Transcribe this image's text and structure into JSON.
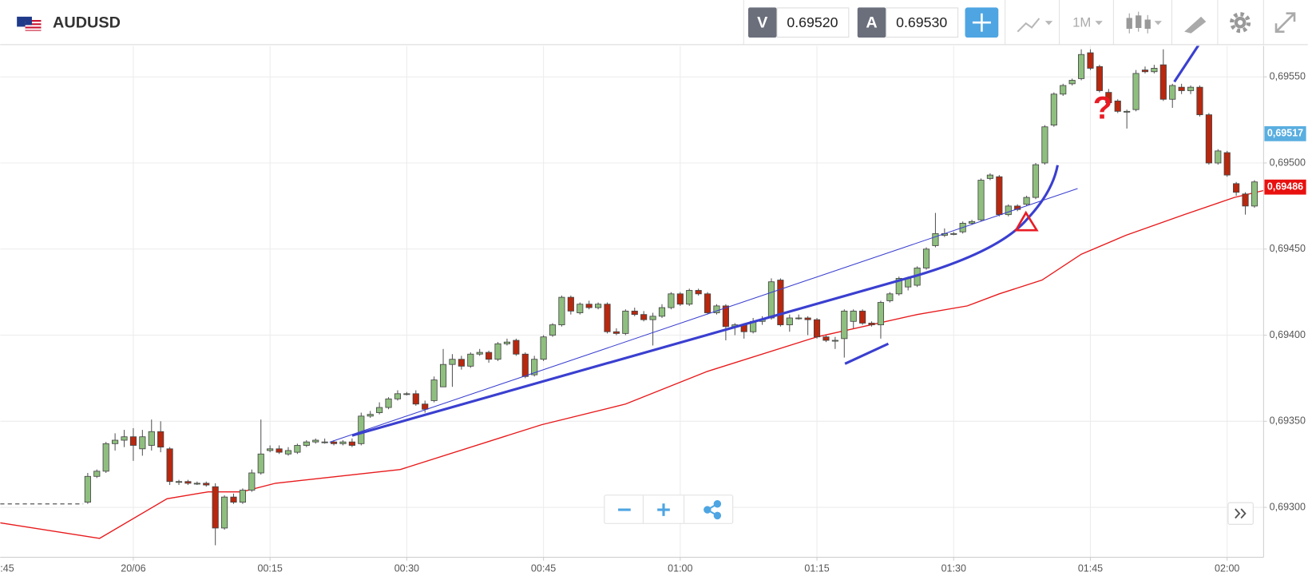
{
  "header": {
    "symbol": "AUDUSD",
    "sell_label": "V",
    "sell_price": "0.69520",
    "buy_label": "A",
    "buy_price": "0.69530",
    "timeframe": "1M"
  },
  "chart_data": {
    "type": "candlestick",
    "x": [
      -5,
      -4,
      -3,
      -2,
      -1,
      0,
      1,
      2,
      3,
      4,
      5,
      6,
      7,
      8,
      9,
      10,
      11,
      12,
      13,
      14,
      15,
      16,
      17,
      18,
      19,
      20,
      21,
      22,
      23,
      24,
      25,
      26,
      27,
      28,
      29,
      30,
      31,
      32,
      33,
      34,
      35,
      36,
      37,
      38,
      39,
      40,
      41,
      42,
      43,
      44,
      45,
      46,
      47,
      48,
      49,
      50,
      51,
      52,
      53,
      54,
      55,
      56,
      57,
      58,
      59,
      60,
      61,
      62,
      63,
      64,
      65,
      66,
      67,
      68,
      69,
      70,
      71,
      72,
      73,
      74,
      75,
      76,
      77,
      78,
      79,
      80,
      81,
      82,
      83,
      84,
      85,
      86,
      87,
      88,
      89,
      90,
      91,
      92,
      93,
      94,
      95,
      96,
      97,
      98,
      99,
      100,
      101,
      102,
      103,
      104,
      105,
      106,
      107,
      108,
      109,
      110,
      111,
      112,
      113,
      114,
      115,
      116,
      117,
      118,
      119,
      120,
      121,
      122,
      123
    ],
    "open": [
      0.69303,
      0.69318,
      0.69321,
      0.69337,
      0.69339,
      0.69341,
      0.69334,
      0.69336,
      0.69344,
      0.69334,
      0.69315,
      0.69315,
      0.69314,
      0.69314,
      0.69312,
      0.69288,
      0.69306,
      0.69303,
      0.6931,
      0.6932,
      0.69333,
      0.69334,
      0.69331,
      0.69332,
      0.69336,
      0.69338,
      0.69338,
      0.69338,
      0.69337,
      0.69338,
      0.69337,
      0.69353,
      0.69355,
      0.69358,
      0.69363,
      0.69366,
      0.69366,
      0.6936,
      0.69362,
      0.6937,
      0.69383,
      0.69386,
      0.69382,
      0.69389,
      0.6939,
      0.69386,
      0.69395,
      0.69397,
      0.69389,
      0.69377,
      0.69386,
      0.694,
      0.69406,
      0.69422,
      0.69413,
      0.69418,
      0.69416,
      0.69418,
      0.69402,
      0.69401,
      0.69414,
      0.69412,
      0.69409,
      0.69411,
      0.69416,
      0.69424,
      0.69418,
      0.69426,
      0.69424,
      0.69413,
      0.69417,
      0.69405,
      0.69406,
      0.69402,
      0.69408,
      0.6941,
      0.69432,
      0.69406,
      0.6941,
      0.6941,
      0.69409,
      0.69399,
      0.69397,
      0.69398,
      0.69408,
      0.69414,
      0.69407,
      0.69406,
      0.6942,
      0.69424,
      0.69428,
      0.69429,
      0.69439,
      0.69452,
      0.69458,
      0.69459,
      0.6946,
      0.69465,
      0.69467,
      0.69491,
      0.69492,
      0.6947,
      0.69475,
      0.69476,
      0.6948,
      0.695,
      0.69522,
      0.6954,
      0.69546,
      0.69549,
      0.69564,
      0.69556,
      0.69541,
      0.69536,
      0.6953,
      0.69531,
      0.69554,
      0.69553,
      0.69557,
      0.69537,
      0.69544,
      0.69542,
      0.69544,
      0.69528,
      0.695,
      0.69506,
      0.69488,
      0.69482,
      0.69475
    ],
    "high": [
      0.6932,
      0.69322,
      0.69338,
      0.69343,
      0.69345,
      0.69346,
      0.69345,
      0.69351,
      0.6935,
      0.69335,
      0.69316,
      0.69316,
      0.69315,
      0.69315,
      0.69314,
      0.69307,
      0.69308,
      0.69311,
      0.69322,
      0.69351,
      0.69336,
      0.69336,
      0.69335,
      0.69337,
      0.69339,
      0.6934,
      0.6934,
      0.69339,
      0.69339,
      0.6934,
      0.69355,
      0.69356,
      0.69361,
      0.69364,
      0.69368,
      0.69367,
      0.69368,
      0.69362,
      0.69376,
      0.69392,
      0.69389,
      0.69388,
      0.6939,
      0.69392,
      0.69391,
      0.69396,
      0.69398,
      0.69398,
      0.6939,
      0.69388,
      0.694,
      0.69407,
      0.69423,
      0.69423,
      0.69419,
      0.6942,
      0.69419,
      0.69419,
      0.69404,
      0.69415,
      0.69416,
      0.69414,
      0.69413,
      0.69418,
      0.69425,
      0.69425,
      0.69427,
      0.69427,
      0.69425,
      0.69418,
      0.69418,
      0.69407,
      0.69407,
      0.6941,
      0.69411,
      0.69433,
      0.69433,
      0.69412,
      0.69412,
      0.69411,
      0.6941,
      0.694,
      0.69399,
      0.69415,
      0.69415,
      0.69415,
      0.69408,
      0.6942,
      0.69425,
      0.69434,
      0.69434,
      0.6944,
      0.69451,
      0.69471,
      0.69462,
      0.6946,
      0.69466,
      0.69467,
      0.69491,
      0.69494,
      0.69493,
      0.69476,
      0.69476,
      0.69481,
      0.695,
      0.69522,
      0.69541,
      0.69546,
      0.69549,
      0.69566,
      0.69566,
      0.69557,
      0.69543,
      0.69537,
      0.69531,
      0.69554,
      0.69556,
      0.69557,
      0.69566,
      0.69546,
      0.69546,
      0.69545,
      0.69545,
      0.69529,
      0.69508,
      0.69507,
      0.69489,
      0.69483,
      0.6949
    ],
    "low": [
      0.69302,
      0.69317,
      0.6932,
      0.69333,
      0.69335,
      0.69327,
      0.6933,
      0.69333,
      0.69332,
      0.69313,
      0.69313,
      0.69313,
      0.69313,
      0.69312,
      0.69278,
      0.69287,
      0.69302,
      0.69302,
      0.69309,
      0.69319,
      0.69332,
      0.69331,
      0.6933,
      0.69331,
      0.69335,
      0.69337,
      0.69337,
      0.69336,
      0.69336,
      0.69335,
      0.69336,
      0.69352,
      0.69354,
      0.69357,
      0.69362,
      0.69365,
      0.69359,
      0.69355,
      0.69361,
      0.6937,
      0.6937,
      0.6938,
      0.69381,
      0.69388,
      0.69384,
      0.69385,
      0.69394,
      0.69388,
      0.69375,
      0.69376,
      0.69385,
      0.69399,
      0.69405,
      0.69412,
      0.69412,
      0.69415,
      0.69415,
      0.69401,
      0.694,
      0.694,
      0.69411,
      0.69408,
      0.69394,
      0.6941,
      0.69415,
      0.69417,
      0.69417,
      0.69423,
      0.69412,
      0.69412,
      0.69397,
      0.694,
      0.69398,
      0.69401,
      0.69406,
      0.69409,
      0.69405,
      0.69402,
      0.69409,
      0.694,
      0.69398,
      0.69396,
      0.69392,
      0.69387,
      0.69404,
      0.69406,
      0.69405,
      0.69398,
      0.69419,
      0.69423,
      0.69426,
      0.69428,
      0.69438,
      0.69451,
      0.69457,
      0.69458,
      0.69459,
      0.69464,
      0.69466,
      0.6949,
      0.69469,
      0.69469,
      0.69472,
      0.69475,
      0.69479,
      0.69499,
      0.69521,
      0.69539,
      0.69545,
      0.69548,
      0.69554,
      0.69541,
      0.69534,
      0.69529,
      0.6952,
      0.6953,
      0.69552,
      0.69552,
      0.69536,
      0.69532,
      0.6954,
      0.6954,
      0.69527,
      0.69499,
      0.69499,
      0.69492,
      0.69481,
      0.6947,
      0.69474
    ],
    "close": [
      0.69318,
      0.69321,
      0.69337,
      0.69339,
      0.69341,
      0.69336,
      0.69341,
      0.69344,
      0.69335,
      0.69315,
      0.69315,
      0.69314,
      0.69314,
      0.69313,
      0.69288,
      0.69306,
      0.69303,
      0.6931,
      0.6932,
      0.69331,
      0.69334,
      0.69332,
      0.69333,
      0.69336,
      0.69338,
      0.69339,
      0.69338,
      0.69337,
      0.69338,
      0.69336,
      0.69353,
      0.69354,
      0.69358,
      0.69363,
      0.69366,
      0.69366,
      0.6936,
      0.69357,
      0.69374,
      0.69383,
      0.69386,
      0.69382,
      0.69389,
      0.6939,
      0.69386,
      0.69395,
      0.69396,
      0.69389,
      0.69376,
      0.69386,
      0.69399,
      0.69406,
      0.69422,
      0.69414,
      0.69418,
      0.69416,
      0.69418,
      0.69402,
      0.69401,
      0.69414,
      0.69412,
      0.69409,
      0.69411,
      0.69416,
      0.69424,
      0.69418,
      0.69426,
      0.69424,
      0.69413,
      0.69417,
      0.69405,
      0.69406,
      0.69402,
      0.69408,
      0.69409,
      0.69431,
      0.69406,
      0.6941,
      0.6941,
      0.69409,
      0.69399,
      0.69397,
      0.69397,
      0.69414,
      0.69414,
      0.69407,
      0.69406,
      0.69419,
      0.69424,
      0.69433,
      0.69433,
      0.69439,
      0.6945,
      0.69459,
      0.69459,
      0.69459,
      0.69465,
      0.69466,
      0.6949,
      0.69493,
      0.6947,
      0.69475,
      0.69473,
      0.6948,
      0.69499,
      0.69521,
      0.6954,
      0.69545,
      0.69548,
      0.69563,
      0.69555,
      0.69542,
      0.69535,
      0.6953,
      0.6953,
      0.69552,
      0.69553,
      0.69555,
      0.69537,
      0.69545,
      0.69542,
      0.69544,
      0.69528,
      0.695,
      0.69507,
      0.69493,
      0.69483,
      0.69475,
      0.69489
    ],
    "up_color": "#8fbf7f",
    "down_color": "#b8280f",
    "moving_average": {
      "color": "#e8191b",
      "x": [
        -14.6,
        -3.7,
        3.7,
        8.2,
        11.9,
        15.6,
        29.3,
        44.8,
        54,
        63,
        75,
        86,
        91.5,
        95,
        99.7,
        104,
        108.9,
        115.3,
        120.8,
        124
      ],
      "values": [
        0.69291,
        0.69282,
        0.69305,
        0.69309,
        0.69309,
        0.69314,
        0.69322,
        0.69348,
        0.6936,
        0.69379,
        0.69399,
        0.69412,
        0.69417,
        0.69424,
        0.69432,
        0.69447,
        0.69458,
        0.6947,
        0.6948,
        0.69484
      ]
    },
    "prev_close_line": {
      "x": [
        -14.6,
        -5.5
      ],
      "values": [
        0.69302,
        0.69302
      ]
    },
    "price_markers": [
      {
        "value": 0.69517,
        "label": "0,69517",
        "color": "#5aaee0"
      },
      {
        "value": 0.69486,
        "label": "0,69486",
        "color": "#e8110f"
      }
    ],
    "xlim": [
      -14.6,
      124
    ],
    "xticks": [
      {
        "value": -15,
        "label": ":45"
      },
      {
        "value": 0,
        "label": "20/06"
      },
      {
        "value": 15,
        "label": "00:15"
      },
      {
        "value": 30,
        "label": "00:30"
      },
      {
        "value": 45,
        "label": "00:45"
      },
      {
        "value": 60,
        "label": "01:00"
      },
      {
        "value": 75,
        "label": "01:15"
      },
      {
        "value": 90,
        "label": "01:30"
      },
      {
        "value": 105,
        "label": "01:45"
      },
      {
        "value": 120,
        "label": "02:00"
      }
    ],
    "ylim": [
      0.69271,
      0.69568
    ],
    "yticks": [
      {
        "value": 0.693,
        "label": "0,69300"
      },
      {
        "value": 0.6935,
        "label": "0,69350"
      },
      {
        "value": 0.694,
        "label": "0,69400"
      },
      {
        "value": 0.6945,
        "label": "0,69450"
      },
      {
        "value": 0.695,
        "label": "0,69500"
      },
      {
        "value": 0.6955,
        "label": "0,69550"
      }
    ],
    "grid": true
  }
}
